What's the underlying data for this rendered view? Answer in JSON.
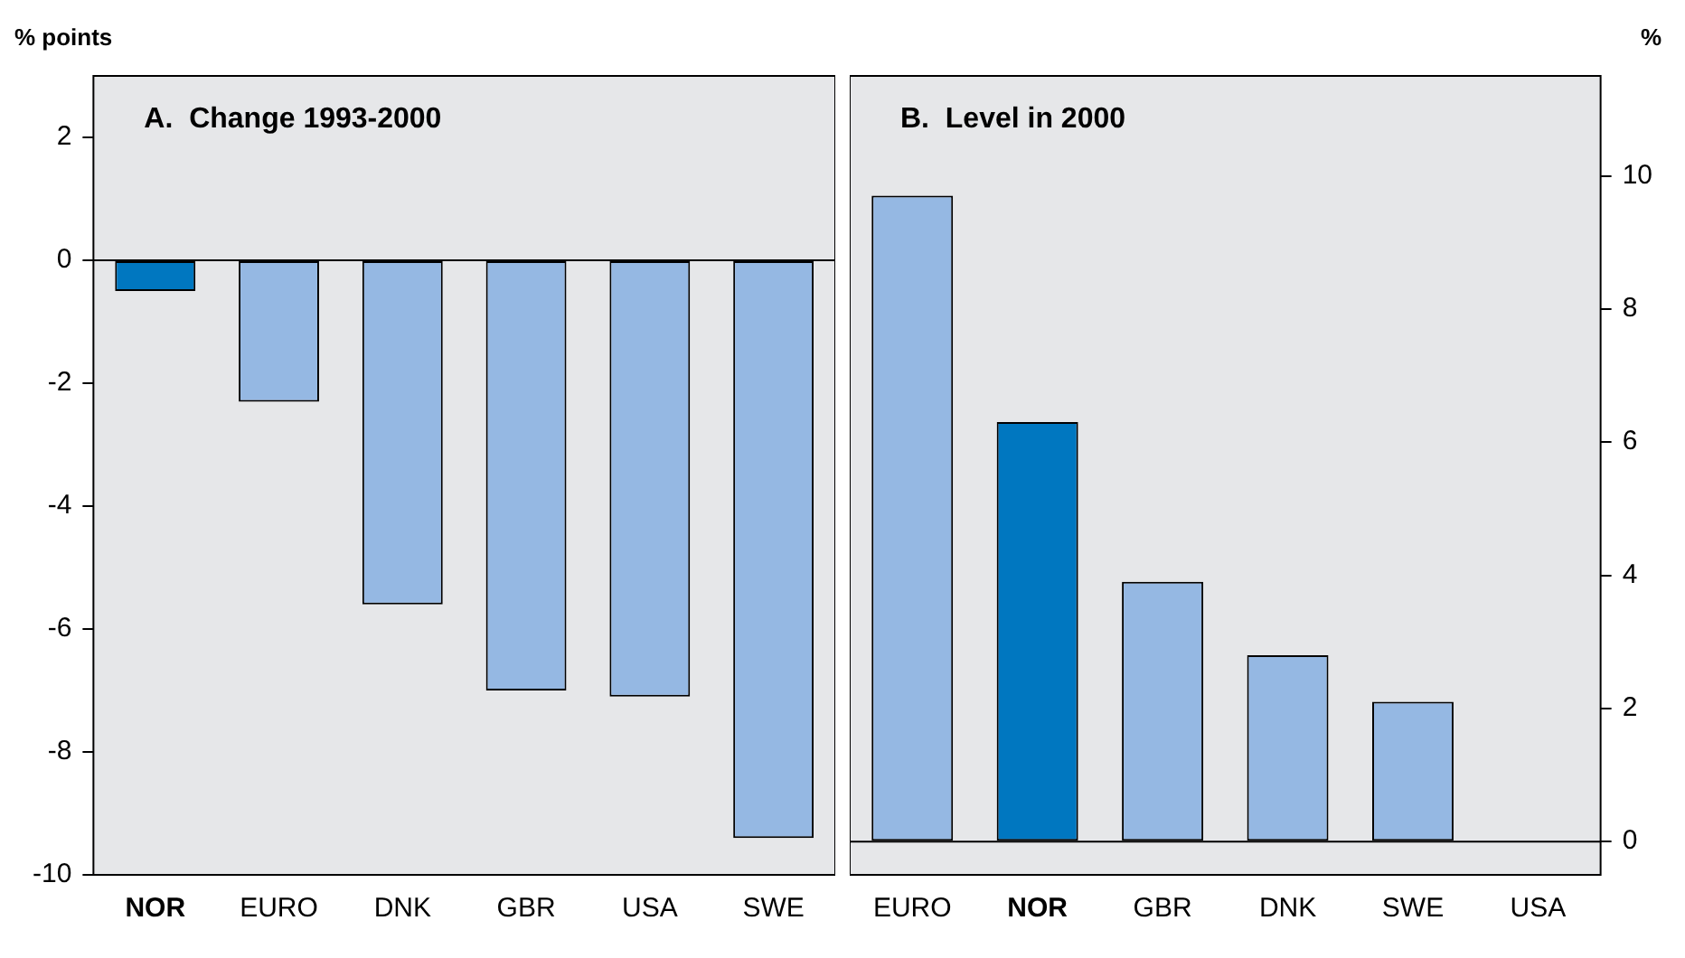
{
  "chart_data": [
    {
      "type": "bar",
      "title": "A.  Change 1993-2000",
      "ylabel": "% points",
      "categories": [
        "NOR",
        "EURO",
        "DNK",
        "GBR",
        "USA",
        "SWE"
      ],
      "values": [
        -0.5,
        -2.3,
        -5.6,
        -7.0,
        -7.1,
        -9.4
      ],
      "colors": [
        "#0077c0",
        "#95b8e3",
        "#95b8e3",
        "#95b8e3",
        "#95b8e3",
        "#95b8e3"
      ],
      "ylim": [
        -10,
        3
      ],
      "yticks": [
        -10,
        -8,
        -6,
        -4,
        -2,
        0,
        2
      ],
      "ref_lines": [
        {
          "axis": "y",
          "value": 0,
          "color": "#000000"
        }
      ],
      "legend": false
    },
    {
      "type": "bar",
      "title": "B.  Level in 2000",
      "ylabel": "%",
      "categories": [
        "EURO",
        "NOR",
        "GBR",
        "DNK",
        "SWE",
        "USA"
      ],
      "values": [
        9.7,
        6.3,
        3.9,
        2.8,
        2.1,
        0
      ],
      "colors": [
        "#95b8e3",
        "#0077c0",
        "#95b8e3",
        "#95b8e3",
        "#95b8e3",
        "#95b8e3"
      ],
      "ylim": [
        -0.5,
        11.5
      ],
      "yticks": [
        0,
        2,
        4,
        6,
        8,
        10
      ],
      "ref_lines": [
        {
          "axis": "y",
          "value": 0,
          "color": "#000000"
        }
      ],
      "legend": false
    }
  ]
}
